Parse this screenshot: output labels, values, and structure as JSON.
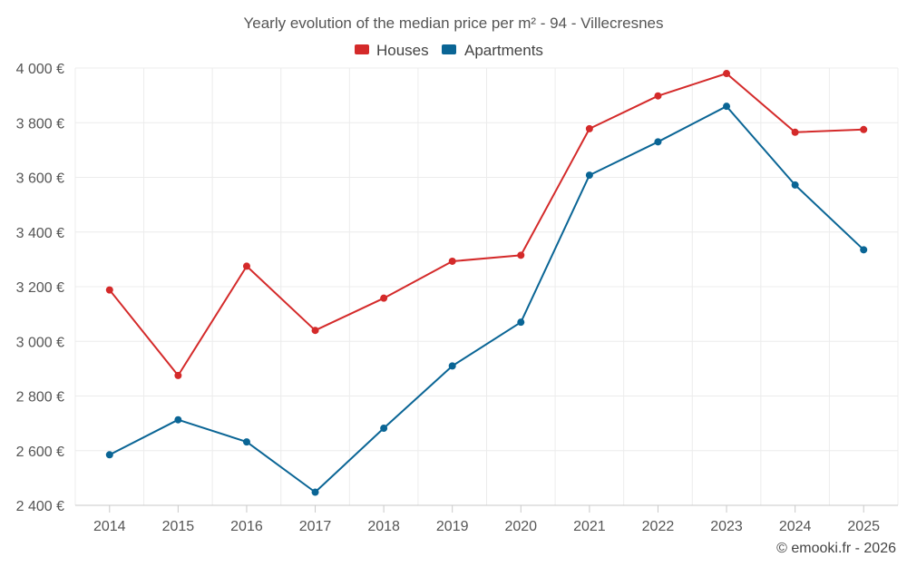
{
  "chart_data": {
    "type": "line",
    "title": "Yearly evolution of the median price per m² - 94 - Villecresnes",
    "categories": [
      "2014",
      "2015",
      "2016",
      "2017",
      "2018",
      "2019",
      "2020",
      "2021",
      "2022",
      "2023",
      "2024",
      "2025"
    ],
    "series": [
      {
        "name": "Houses",
        "color": "#d42a2a",
        "values": [
          3188,
          2875,
          3275,
          3040,
          3158,
          3293,
          3315,
          3778,
          3898,
          3980,
          3765,
          3775
        ]
      },
      {
        "name": "Apartments",
        "color": "#0a6595",
        "values": [
          2585,
          2713,
          2632,
          2448,
          2682,
          2910,
          3070,
          3608,
          3730,
          3860,
          3572,
          3335
        ]
      }
    ],
    "ylim": [
      2400,
      4000
    ],
    "yticks": [
      2400,
      2600,
      2800,
      3000,
      3200,
      3400,
      3600,
      3800,
      4000
    ],
    "ytick_labels": [
      "2 400 €",
      "2 600 €",
      "2 800 €",
      "3 000 €",
      "3 200 €",
      "3 400 €",
      "3 600 €",
      "3 800 €",
      "4 000 €"
    ],
    "xlabel": "",
    "ylabel": "",
    "grid": true,
    "legend_position": "top-center",
    "credit": "© emooki.fr - 2026"
  }
}
